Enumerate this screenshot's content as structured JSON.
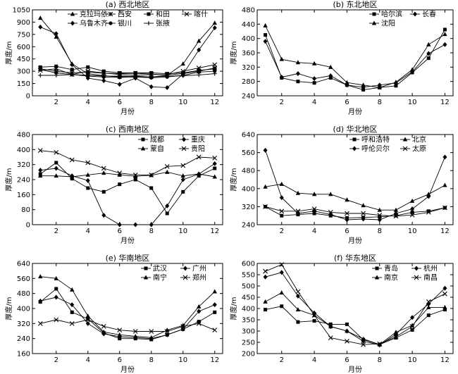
{
  "figure": {
    "background": "#ffffff",
    "line_color": "#000000"
  },
  "chart_data": [
    {
      "type": "line",
      "title": "(a) 西北地区",
      "xlabel": "月份",
      "ylabel": "厚度/m",
      "xlim": [
        0.5,
        12.5
      ],
      "ylim": [
        0,
        1050
      ],
      "xticks": [
        2,
        4,
        6,
        8,
        10,
        12
      ],
      "yticks": [
        0,
        150,
        300,
        450,
        600,
        750,
        900,
        1050
      ],
      "grid": false,
      "legend": "top-right",
      "legend_cols": 4,
      "x": [
        1,
        2,
        3,
        4,
        5,
        6,
        7,
        8,
        9,
        10,
        11,
        12
      ],
      "series": [
        {
          "name": "克拉玛依",
          "marker": "triangle",
          "values": [
            950,
            720,
            390,
            270,
            245,
            230,
            240,
            230,
            250,
            390,
            670,
            890
          ]
        },
        {
          "name": "西安",
          "marker": "star",
          "values": [
            330,
            300,
            280,
            290,
            275,
            270,
            275,
            265,
            255,
            270,
            300,
            340
          ]
        },
        {
          "name": "和田",
          "marker": "square",
          "values": [
            350,
            360,
            320,
            350,
            300,
            280,
            280,
            280,
            270,
            280,
            310,
            330
          ]
        },
        {
          "name": "喀什",
          "marker": "x",
          "values": [
            310,
            330,
            260,
            300,
            280,
            260,
            250,
            260,
            260,
            300,
            340,
            380
          ]
        },
        {
          "name": "乌鲁木齐",
          "marker": "diamond",
          "values": [
            840,
            760,
            380,
            215,
            185,
            140,
            215,
            110,
            100,
            265,
            560,
            830
          ]
        },
        {
          "name": "银川",
          "marker": "circle",
          "values": [
            320,
            280,
            260,
            240,
            230,
            225,
            230,
            220,
            230,
            250,
            290,
            300
          ]
        },
        {
          "name": "张掖",
          "marker": "plus",
          "values": [
            250,
            250,
            260,
            250,
            240,
            240,
            235,
            230,
            240,
            245,
            255,
            270
          ]
        }
      ]
    },
    {
      "type": "line",
      "title": "(b) 东北地区",
      "xlabel": "月份",
      "ylabel": "厚度/m",
      "xlim": [
        0.5,
        12.5
      ],
      "ylim": [
        240,
        480
      ],
      "xticks": [
        2,
        4,
        6,
        8,
        10,
        12
      ],
      "yticks": [
        240,
        280,
        320,
        360,
        400,
        440,
        480
      ],
      "grid": false,
      "legend": "top-right",
      "legend_cols": 2,
      "x": [
        1,
        2,
        3,
        4,
        5,
        6,
        7,
        8,
        9,
        10,
        11,
        12
      ],
      "series": [
        {
          "name": "哈尔滨",
          "marker": "square",
          "values": [
            410,
            290,
            280,
            276,
            290,
            270,
            257,
            263,
            268,
            305,
            345,
            425
          ]
        },
        {
          "name": "长春",
          "marker": "diamond",
          "values": [
            392,
            292,
            302,
            288,
            296,
            270,
            264,
            270,
            276,
            307,
            358,
            383
          ]
        },
        {
          "name": "沈阳",
          "marker": "triangle",
          "values": [
            436,
            342,
            333,
            330,
            320,
            277,
            270,
            263,
            278,
            313,
            383,
            412
          ]
        }
      ]
    },
    {
      "type": "line",
      "title": "(c) 西南地区",
      "xlabel": "月份",
      "ylabel": "厚度/m",
      "xlim": [
        0.5,
        12.5
      ],
      "ylim": [
        0,
        480
      ],
      "xticks": [
        2,
        4,
        6,
        8,
        10,
        12
      ],
      "yticks": [
        0,
        80,
        160,
        240,
        320,
        400,
        480
      ],
      "grid": false,
      "legend": "top-right",
      "legend_cols": 2,
      "x": [
        1,
        2,
        3,
        4,
        5,
        6,
        7,
        8,
        9,
        10,
        11,
        12
      ],
      "series": [
        {
          "name": "成都",
          "marker": "square",
          "values": [
            270,
            330,
            245,
            195,
            175,
            215,
            240,
            195,
            60,
            175,
            260,
            300
          ]
        },
        {
          "name": "重庆",
          "marker": "diamond",
          "values": [
            290,
            300,
            260,
            235,
            50,
            0,
            0,
            0,
            100,
            240,
            270,
            325
          ]
        },
        {
          "name": "蒙自",
          "marker": "triangle",
          "values": [
            260,
            260,
            255,
            265,
            275,
            265,
            258,
            263,
            280,
            260,
            270,
            255
          ]
        },
        {
          "name": "贵阳",
          "marker": "x",
          "values": [
            395,
            385,
            345,
            330,
            300,
            275,
            265,
            265,
            310,
            315,
            360,
            355
          ]
        }
      ]
    },
    {
      "type": "line",
      "title": "(d) 华北地区",
      "xlabel": "月份",
      "ylabel": "厚度/m",
      "xlim": [
        0.5,
        12.5
      ],
      "ylim": [
        240,
        640
      ],
      "xticks": [
        2,
        4,
        6,
        8,
        10,
        12
      ],
      "yticks": [
        240,
        320,
        400,
        480,
        560,
        640
      ],
      "grid": false,
      "legend": "top-right",
      "legend_cols": 2,
      "x": [
        1,
        2,
        3,
        4,
        5,
        6,
        7,
        8,
        9,
        10,
        11,
        12
      ],
      "series": [
        {
          "name": "呼和浩特",
          "marker": "square",
          "values": [
            320,
            280,
            285,
            290,
            280,
            270,
            272,
            275,
            280,
            295,
            300,
            315
          ]
        },
        {
          "name": "北京",
          "marker": "triangle",
          "values": [
            408,
            420,
            380,
            375,
            375,
            350,
            325,
            305,
            305,
            345,
            375,
            415
          ]
        },
        {
          "name": "呼伦贝尔",
          "marker": "diamond",
          "values": [
            570,
            360,
            290,
            300,
            285,
            262,
            265,
            262,
            290,
            310,
            365,
            540
          ]
        },
        {
          "name": "太原",
          "marker": "x",
          "values": [
            320,
            300,
            300,
            310,
            295,
            290,
            290,
            282,
            278,
            283,
            295,
            315
          ]
        }
      ]
    },
    {
      "type": "line",
      "title": "(e) 华南地区",
      "xlabel": "月份",
      "ylabel": "厚度/m",
      "xlim": [
        0.5,
        12.5
      ],
      "ylim": [
        160,
        640
      ],
      "xticks": [
        2,
        4,
        6,
        8,
        10,
        12
      ],
      "yticks": [
        160,
        240,
        320,
        400,
        480,
        560,
        640
      ],
      "grid": false,
      "legend": "top-right",
      "legend_cols": 2,
      "x": [
        1,
        2,
        3,
        4,
        5,
        6,
        7,
        8,
        9,
        10,
        11,
        12
      ],
      "series": [
        {
          "name": "武汉",
          "marker": "square",
          "values": [
            435,
            505,
            380,
            345,
            270,
            240,
            240,
            235,
            260,
            290,
            330,
            380
          ]
        },
        {
          "name": "广州",
          "marker": "diamond",
          "values": [
            440,
            460,
            420,
            320,
            265,
            250,
            245,
            240,
            260,
            290,
            385,
            420
          ]
        },
        {
          "name": "南宁",
          "marker": "triangle",
          "values": [
            570,
            560,
            500,
            360,
            275,
            260,
            252,
            245,
            285,
            310,
            410,
            490
          ]
        },
        {
          "name": "郑州",
          "marker": "x",
          "values": [
            320,
            340,
            320,
            340,
            305,
            285,
            278,
            278,
            278,
            305,
            320,
            285
          ]
        }
      ]
    },
    {
      "type": "line",
      "title": "(f) 华东地区",
      "xlabel": "月份",
      "ylabel": "厚度/m",
      "xlim": [
        0.5,
        12.5
      ],
      "ylim": [
        200,
        600
      ],
      "xticks": [
        2,
        4,
        6,
        8,
        10,
        12
      ],
      "yticks": [
        200,
        250,
        300,
        350,
        400,
        450,
        500,
        550,
        600
      ],
      "grid": false,
      "legend": "top-right",
      "legend_cols": 2,
      "x": [
        1,
        2,
        3,
        4,
        5,
        6,
        7,
        8,
        9,
        10,
        11,
        12
      ],
      "series": [
        {
          "name": "青岛",
          "marker": "square",
          "values": [
            395,
            410,
            340,
            345,
            330,
            330,
            262,
            240,
            270,
            305,
            370,
            395
          ]
        },
        {
          "name": "杭州",
          "marker": "diamond",
          "values": [
            540,
            560,
            455,
            380,
            320,
            300,
            255,
            238,
            285,
            360,
            420,
            490
          ]
        },
        {
          "name": "南京",
          "marker": "triangle",
          "values": [
            430,
            470,
            395,
            370,
            320,
            300,
            265,
            240,
            295,
            325,
            405,
            405
          ]
        },
        {
          "name": "南昌",
          "marker": "x",
          "values": [
            565,
            595,
            475,
            370,
            270,
            255,
            240,
            243,
            275,
            320,
            430,
            465
          ]
        }
      ]
    }
  ]
}
